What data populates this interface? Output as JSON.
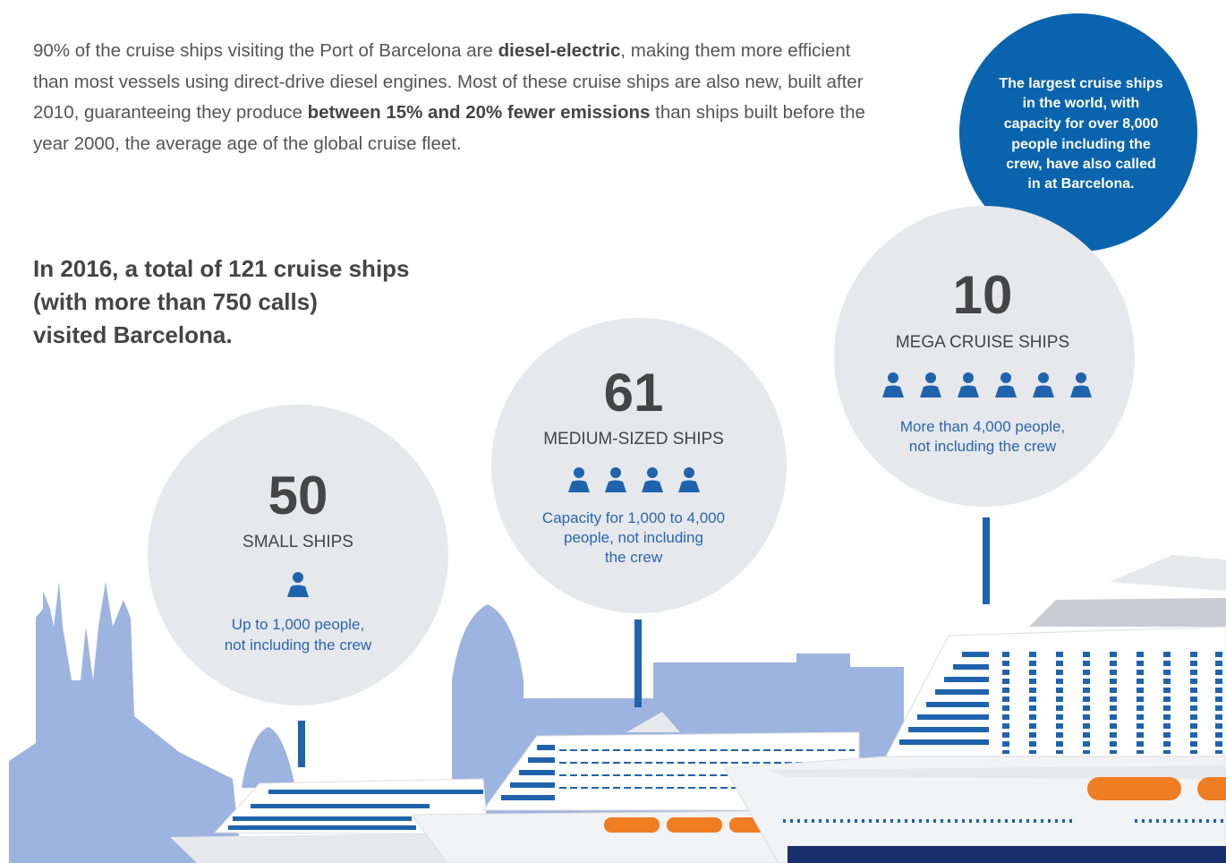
{
  "intro": [
    {
      "text": "90% of the cruise ships visiting the Port of Barcelona are ",
      "bold": false
    },
    {
      "text": "diesel-electric",
      "bold": true
    },
    {
      "text": ", making them more efficient than most vessels using direct-drive diesel engines. Most of these cruise ships are also new, built after 2010, guaranteeing they produce ",
      "bold": false
    },
    {
      "text": "between 15% and 20% fewer emissions",
      "bold": true
    },
    {
      "text": " than ships built before the year 2000, the average age of the global cruise fleet.",
      "bold": false
    }
  ],
  "headline": [
    "In 2016, a total of 121 cruise ships",
    "(with more than 750 calls)",
    "visited Barcelona."
  ],
  "callout": [
    "The largest cruise ships",
    "in the world, with",
    "capacity for over 8,000",
    "people including the",
    "crew, have also called",
    "in at Barcelona."
  ],
  "groups": [
    {
      "number": "50",
      "label": "SMALL SHIPS",
      "description": [
        "Up to 1,000 people,",
        "not including the crew"
      ]
    },
    {
      "number": "61",
      "label": "MEDIUM-SIZED SHIPS",
      "description": [
        "Capacity for 1,000 to 4,000",
        "people, not including",
        "the crew"
      ]
    },
    {
      "number": "10",
      "label": "MEGA CRUISE SHIPS",
      "description": [
        "More than 4,000 people,",
        "not including the crew"
      ]
    }
  ]
}
